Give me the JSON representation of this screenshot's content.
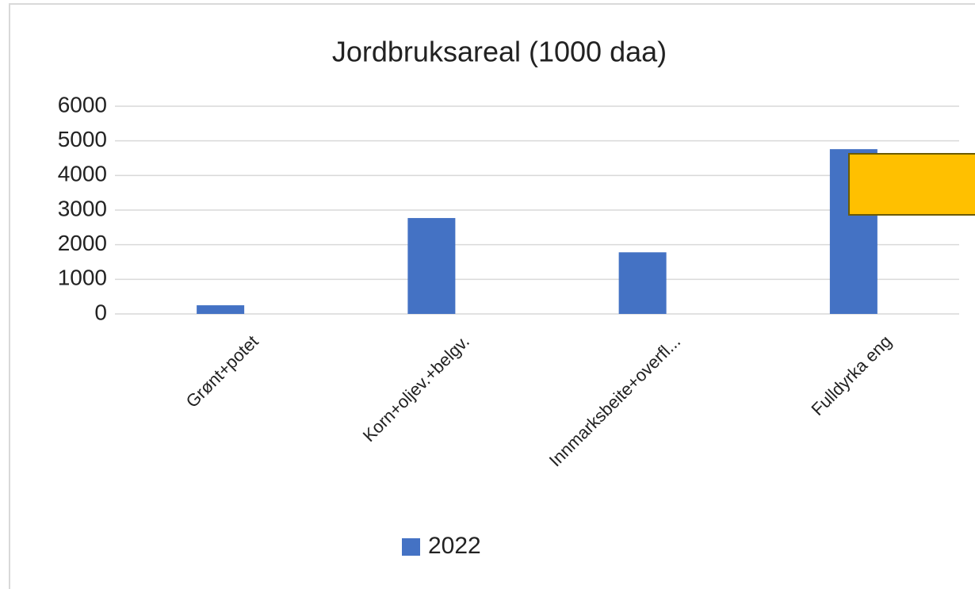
{
  "chart_data": {
    "type": "bar",
    "title": "Jordbruksareal  (1000 daa)",
    "categories": [
      "Grønt+potet",
      "Korn+oljev.+belgv.",
      "Innmarksbeite+overfl...",
      "Fulldyrka eng"
    ],
    "series": [
      {
        "name": "2022",
        "color": "#4472c4",
        "values": [
          250,
          2770,
          1780,
          4760
        ]
      }
    ],
    "ylim": [
      0,
      6000
    ],
    "yticks": [
      0,
      1000,
      2000,
      3000,
      4000,
      5000,
      6000
    ],
    "grid": true,
    "legend": "bottom"
  }
}
